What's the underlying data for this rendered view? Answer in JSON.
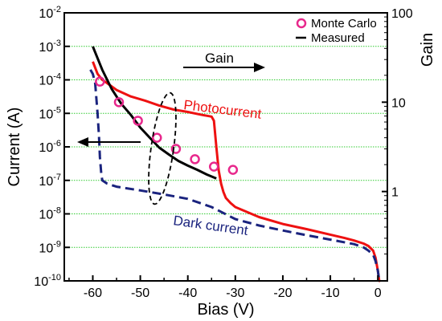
{
  "chart_data": {
    "type": "line",
    "xlabel": "Bias (V)",
    "ylabel_left": "Current (A)",
    "ylabel_right": "Gain",
    "x_range": [
      -66,
      2
    ],
    "y_left_range_log10": [
      -10,
      -2
    ],
    "y_right_range": [
      0.1,
      100
    ],
    "x_ticks": [
      {
        "value": -60,
        "label": "-60"
      },
      {
        "value": -50,
        "label": "-50"
      },
      {
        "value": -40,
        "label": "-40"
      },
      {
        "value": -30,
        "label": "-30"
      },
      {
        "value": -20,
        "label": "-20"
      },
      {
        "value": -10,
        "label": "-10"
      },
      {
        "value": 0,
        "label": "0"
      }
    ],
    "y_left_ticks": [
      {
        "exp": -10,
        "base": "10",
        "sup": "-10"
      },
      {
        "exp": -9,
        "base": "10",
        "sup": "-9"
      },
      {
        "exp": -8,
        "base": "10",
        "sup": "-8"
      },
      {
        "exp": -7,
        "base": "10",
        "sup": "-7"
      },
      {
        "exp": -6,
        "base": "10",
        "sup": "-6"
      },
      {
        "exp": -5,
        "base": "10",
        "sup": "-5"
      },
      {
        "exp": -4,
        "base": "10",
        "sup": "-4"
      },
      {
        "exp": -3,
        "base": "10",
        "sup": "-3"
      },
      {
        "exp": -2,
        "base": "10",
        "sup": "-2"
      }
    ],
    "y_right_ticks": [
      {
        "value": 1,
        "label": "1"
      },
      {
        "value": 10,
        "label": "10"
      },
      {
        "value": 100,
        "label": "100"
      }
    ],
    "gridlines_left_exp": [
      -9,
      -8,
      -7,
      -6,
      -5,
      -4,
      -3
    ],
    "grid": "dotted green horizontal at left-axis decades",
    "legend": {
      "position": "top-right",
      "entries": [
        {
          "label": "Monte Carlo",
          "marker": "circle",
          "color": "#e8288c"
        },
        {
          "label": "Measured",
          "marker": "line",
          "color": "#000000"
        }
      ]
    },
    "series": [
      {
        "name": "Photocurrent",
        "axis": "left",
        "color": "#ee1111",
        "style": "solid",
        "x": [
          -60,
          -59,
          -58,
          -57,
          -55,
          -52,
          -49,
          -46,
          -43,
          -40,
          -37,
          -35,
          -34.5,
          -34,
          -33.5,
          -33,
          -32.5,
          -32,
          -31,
          -30,
          -25,
          -20,
          -15,
          -10,
          -7,
          -5,
          -3,
          -2,
          -1,
          -0.5,
          0,
          0.3,
          0.5
        ],
        "y": [
          0.00035,
          0.00015,
          0.0001,
          8e-05,
          5e-05,
          3.2e-05,
          2.4e-05,
          1.7e-05,
          1.3e-05,
          1.1e-05,
          9e-06,
          8e-06,
          6e-06,
          1e-06,
          2e-07,
          8e-08,
          4.5e-08,
          3e-08,
          2.1e-08,
          1.6e-08,
          8e-09,
          5e-09,
          3.5e-09,
          2.4e-09,
          1.9e-09,
          1.6e-09,
          1.3e-09,
          1.1e-09,
          8e-10,
          5e-10,
          2e-10,
          1e-10,
          1e-10
        ]
      },
      {
        "name": "Dark current",
        "axis": "left",
        "color": "#1a237e",
        "style": "dashed",
        "x": [
          -60.5,
          -60,
          -59.5,
          -59,
          -58.7,
          -58.5,
          -58.2,
          -58,
          -57,
          -55,
          -50,
          -45,
          -40,
          -35,
          -30,
          -25,
          -20,
          -15,
          -10,
          -5,
          -3,
          -2,
          -1,
          -0.5,
          0,
          0.3,
          0.5
        ],
        "y": [
          0.0002,
          0.00015,
          8e-05,
          1e-05,
          2e-06,
          5e-07,
          1.5e-07,
          1e-07,
          8e-08,
          6.5e-08,
          5e-08,
          3.8e-08,
          2.8e-08,
          1.6e-08,
          7e-09,
          4.5e-09,
          3.2e-09,
          2.3e-09,
          1.7e-09,
          1.25e-09,
          1e-09,
          8e-10,
          6e-10,
          4e-10,
          2e-10,
          1e-10,
          1e-10
        ]
      },
      {
        "name": "Measured",
        "axis": "right",
        "color": "#000000",
        "style": "solid",
        "x": [
          -60,
          -58,
          -56,
          -54,
          -52,
          -50,
          -48,
          -46,
          -44,
          -42,
          -40,
          -38,
          -36,
          -34
        ],
        "y": [
          42,
          23,
          14,
          9.6,
          7.2,
          5.2,
          4.0,
          3.1,
          2.6,
          2.2,
          1.95,
          1.75,
          1.55,
          1.4
        ]
      },
      {
        "name": "Monte Carlo",
        "axis": "right",
        "color": "#e8288c",
        "style": "markers",
        "x": [
          -58.5,
          -54.5,
          -50.5,
          -46.5,
          -42.5,
          -38.5,
          -34.5,
          -30.5
        ],
        "y": [
          17,
          10,
          6.2,
          4.0,
          3.0,
          2.3,
          1.9,
          1.75
        ]
      }
    ],
    "annotations": [
      {
        "text": "Gain",
        "color": "#000000"
      },
      {
        "text": "Photocurrent",
        "color": "#ee1111"
      },
      {
        "text": "Dark current",
        "color": "#1a237e"
      }
    ]
  }
}
